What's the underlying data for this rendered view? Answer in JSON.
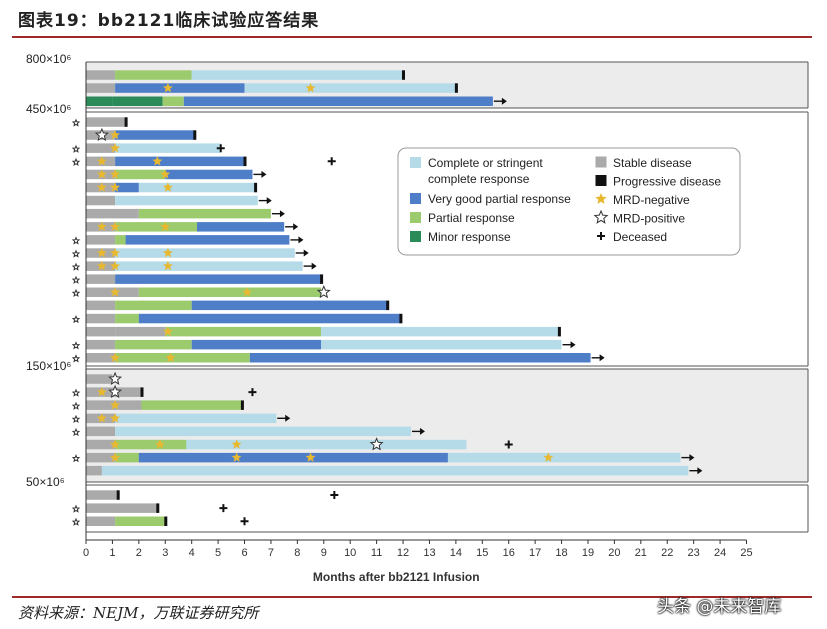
{
  "header": {
    "title": "图表19：bb2121临床试验应答结果"
  },
  "footer": {
    "source": "资料来源：NEJM，万联证券研究所"
  },
  "watermark": {
    "text": "头条 @未来智库"
  },
  "chart_data": {
    "type": "bar",
    "stacked": true,
    "orientation": "horizontal",
    "xlabel": "Months after bb2121 Infusion",
    "xlim": [
      0,
      25
    ],
    "xticks": [
      0,
      1,
      2,
      3,
      4,
      5,
      6,
      7,
      8,
      9,
      10,
      11,
      12,
      13,
      14,
      15,
      16,
      17,
      18,
      19,
      20,
      21,
      22,
      23,
      24,
      25
    ],
    "colors": {
      "CR": "#b5dbe8",
      "VGPR": "#4f7ec9",
      "PR": "#9ccb6e",
      "MR": "#2a8a58",
      "SD": "#aaaaaa",
      "PD": "#111111",
      "star": "#e7b830",
      "panel": "#ececec"
    },
    "legend": [
      {
        "key": "CR",
        "label": "Complete or stringent complete response",
        "lines": [
          "Complete or stringent",
          "complete response"
        ],
        "type": "swatch"
      },
      {
        "key": "VGPR",
        "label": "Very good partial response",
        "lines": [
          "Very good partial response"
        ],
        "type": "swatch"
      },
      {
        "key": "PR",
        "label": "Partial response",
        "lines": [
          "Partial response"
        ],
        "type": "swatch"
      },
      {
        "key": "MR",
        "label": "Minor response",
        "lines": [
          "Minor response"
        ],
        "type": "swatch"
      },
      {
        "key": "SD",
        "label": "Stable disease",
        "lines": [
          "Stable disease"
        ],
        "type": "swatch"
      },
      {
        "key": "PD",
        "label": "Progressive disease",
        "lines": [
          "Progressive disease"
        ],
        "type": "swatch"
      },
      {
        "key": "MRDneg",
        "label": "MRD-negative",
        "lines": [
          "MRD-negative"
        ],
        "type": "star-filled"
      },
      {
        "key": "MRDpos",
        "label": "MRD-positive",
        "lines": [
          "MRD-positive"
        ],
        "type": "star-open"
      },
      {
        "key": "dec",
        "label": "Deceased",
        "lines": [
          "Deceased"
        ],
        "type": "plus"
      }
    ],
    "dose_groups": [
      {
        "label": "800×10⁶",
        "shaded": true,
        "patients": [
          {
            "segs": [
              [
                "SD",
                0,
                1.1
              ],
              [
                "PR",
                1.1,
                4.0
              ],
              [
                "CR",
                4.0,
                12.0
              ]
            ],
            "pd": 12.0
          },
          {
            "segs": [
              [
                "SD",
                0,
                1.1
              ],
              [
                "VGPR",
                1.1,
                6.0
              ],
              [
                "CR",
                6.0,
                14.0
              ]
            ],
            "pd": 14.0,
            "mrdneg": [
              3.1,
              8.5
            ]
          },
          {
            "segs": [
              [
                "MR",
                0,
                1.0
              ],
              [
                "MR",
                1.0,
                2.9
              ],
              [
                "PR",
                2.9,
                3.7
              ],
              [
                "VGPR",
                3.7,
                15.4
              ]
            ],
            "arrow": true
          }
        ]
      },
      {
        "label": "450×10⁶",
        "shaded": false,
        "patients": [
          {
            "segs": [
              [
                "SD",
                0,
                1.5
              ]
            ],
            "pd": 1.5,
            "side": true
          },
          {
            "segs": [
              [
                "SD",
                0,
                1.1
              ],
              [
                "VGPR",
                1.1,
                4.1
              ]
            ],
            "pd": 4.1,
            "mrdpos": [
              0.6
            ],
            "mrdneg": [
              1.1
            ]
          },
          {
            "segs": [
              [
                "SD",
                0,
                1.1
              ],
              [
                "CR",
                1.1,
                5.1
              ]
            ],
            "dec": 5.1,
            "mrdneg": [
              1.1
            ],
            "side": true
          },
          {
            "segs": [
              [
                "SD",
                0,
                1.1
              ],
              [
                "VGPR",
                1.1,
                6.0
              ]
            ],
            "pd": 6.0,
            "mrdneg": [
              0.6,
              2.7
            ],
            "side": true,
            "dec": 9.3
          },
          {
            "segs": [
              [
                "SD",
                0,
                1.1
              ],
              [
                "PR",
                1.1,
                3.0
              ],
              [
                "VGPR",
                3.0,
                6.3
              ]
            ],
            "arrow": true,
            "mrdneg": [
              0.6,
              1.1,
              3.0
            ]
          },
          {
            "segs": [
              [
                "SD",
                0,
                1.1
              ],
              [
                "VGPR",
                1.1,
                2.0
              ],
              [
                "CR",
                2.0,
                6.4
              ]
            ],
            "pd": 6.4,
            "mrdneg": [
              0.6,
              1.1,
              3.1
            ]
          },
          {
            "segs": [
              [
                "SD",
                0,
                1.1
              ],
              [
                "CR",
                1.1,
                6.5
              ]
            ],
            "arrow": true
          },
          {
            "segs": [
              [
                "SD",
                0,
                2.0
              ],
              [
                "PR",
                2.0,
                7.0
              ]
            ],
            "arrow": true
          },
          {
            "segs": [
              [
                "SD",
                0,
                1.1
              ],
              [
                "PR",
                1.1,
                4.2
              ],
              [
                "VGPR",
                4.2,
                7.5
              ]
            ],
            "arrow": true,
            "mrdneg": [
              0.6,
              1.1,
              3.0
            ]
          },
          {
            "segs": [
              [
                "SD",
                0,
                1.1
              ],
              [
                "PR",
                1.1,
                1.5
              ],
              [
                "VGPR",
                1.5,
                7.7
              ]
            ],
            "arrow": true,
            "side": true
          },
          {
            "segs": [
              [
                "SD",
                0,
                1.1
              ],
              [
                "CR",
                1.1,
                7.9
              ]
            ],
            "arrow": true,
            "mrdneg": [
              0.6,
              1.1,
              3.1
            ],
            "side": true
          },
          {
            "segs": [
              [
                "SD",
                0,
                1.1
              ],
              [
                "CR",
                1.1,
                8.2
              ]
            ],
            "arrow": true,
            "mrdneg": [
              0.6,
              1.1,
              3.1
            ],
            "side": true
          },
          {
            "segs": [
              [
                "SD",
                0,
                1.1
              ],
              [
                "VGPR",
                1.1,
                8.9
              ]
            ],
            "pd": 8.9,
            "side": true
          },
          {
            "segs": [
              [
                "SD",
                0,
                2.0
              ],
              [
                "PR",
                2.0,
                8.9
              ]
            ],
            "mrdneg": [
              1.1,
              6.1
            ],
            "mrdpos": [
              9.0
            ],
            "side": true
          },
          {
            "segs": [
              [
                "SD",
                0,
                1.1
              ],
              [
                "PR",
                1.1,
                4.0
              ],
              [
                "VGPR",
                4.0,
                11.4
              ]
            ],
            "pd": 11.4
          },
          {
            "segs": [
              [
                "SD",
                0,
                1.1
              ],
              [
                "PR",
                1.1,
                2.0
              ],
              [
                "VGPR",
                2.0,
                11.9
              ]
            ],
            "pd": 11.9,
            "side": true
          },
          {
            "segs": [
              [
                "SD",
                0,
                1.1
              ],
              [
                "SD",
                1.1,
                3.0
              ],
              [
                "PR",
                3.0,
                8.9
              ],
              [
                "CR",
                8.9,
                17.9
              ]
            ],
            "pd": 17.9,
            "mrdneg": [
              3.1
            ]
          },
          {
            "segs": [
              [
                "SD",
                0,
                1.1
              ],
              [
                "PR",
                1.1,
                4.0
              ],
              [
                "VGPR",
                4.0,
                8.9
              ],
              [
                "CR",
                8.9,
                18.0
              ]
            ],
            "arrow": true,
            "side": true
          },
          {
            "segs": [
              [
                "SD",
                0,
                1.1
              ],
              [
                "PR",
                1.1,
                6.2
              ],
              [
                "VGPR",
                6.2,
                19.1
              ]
            ],
            "arrow": true,
            "mrdneg": [
              1.1,
              3.2
            ],
            "side": true
          }
        ]
      },
      {
        "label": "150×10⁶",
        "shaded": true,
        "patients": [
          {
            "segs": [
              [
                "SD",
                0,
                1.0
              ]
            ],
            "mrdpos": [
              1.1
            ]
          },
          {
            "segs": [
              [
                "SD",
                0,
                2.1
              ]
            ],
            "pd": 2.1,
            "mrdneg": [
              0.6
            ],
            "mrdpos": [
              1.1
            ],
            "side": true,
            "dec": 6.3
          },
          {
            "segs": [
              [
                "SD",
                0,
                2.1
              ],
              [
                "PR",
                2.1,
                5.9
              ]
            ],
            "pd": 5.9,
            "mrdneg": [
              1.1
            ],
            "side": true
          },
          {
            "segs": [
              [
                "SD",
                0,
                1.1
              ],
              [
                "CR",
                1.1,
                7.2
              ]
            ],
            "arrow": true,
            "mrdneg": [
              0.6,
              1.1
            ],
            "side": true
          },
          {
            "segs": [
              [
                "SD",
                0,
                1.1
              ],
              [
                "CR",
                1.1,
                12.3
              ]
            ],
            "arrow": true,
            "side": true
          },
          {
            "segs": [
              [
                "SD",
                0,
                1.1
              ],
              [
                "PR",
                1.1,
                3.8
              ],
              [
                "CR",
                3.8,
                14.4
              ]
            ],
            "mrdneg": [
              1.1,
              2.8,
              5.7
            ],
            "mrdpos": [
              11.0
            ],
            "dec": 16.0
          },
          {
            "segs": [
              [
                "SD",
                0,
                1.1
              ],
              [
                "PR",
                1.1,
                2.0
              ],
              [
                "VGPR",
                2.0,
                13.7
              ],
              [
                "CR",
                13.7,
                22.5
              ]
            ],
            "arrow": true,
            "mrdneg": [
              1.1,
              5.7,
              8.5,
              17.5
            ],
            "side": true
          },
          {
            "segs": [
              [
                "SD",
                0,
                0.6
              ],
              [
                "CR",
                0.6,
                22.8
              ]
            ],
            "arrow": true
          }
        ]
      },
      {
        "label": "50×10⁶",
        "shaded": false,
        "patients": [
          {
            "segs": [
              [
                "SD",
                0,
                1.2
              ]
            ],
            "pd": 1.2,
            "dec": 9.4
          },
          {
            "segs": [
              [
                "SD",
                0,
                2.7
              ]
            ],
            "pd": 2.7,
            "side": true,
            "dec": 5.2
          },
          {
            "segs": [
              [
                "SD",
                0,
                1.1
              ],
              [
                "PR",
                1.1,
                3.0
              ]
            ],
            "pd": 3.0,
            "side": true,
            "dec": 6.0
          }
        ]
      }
    ]
  }
}
